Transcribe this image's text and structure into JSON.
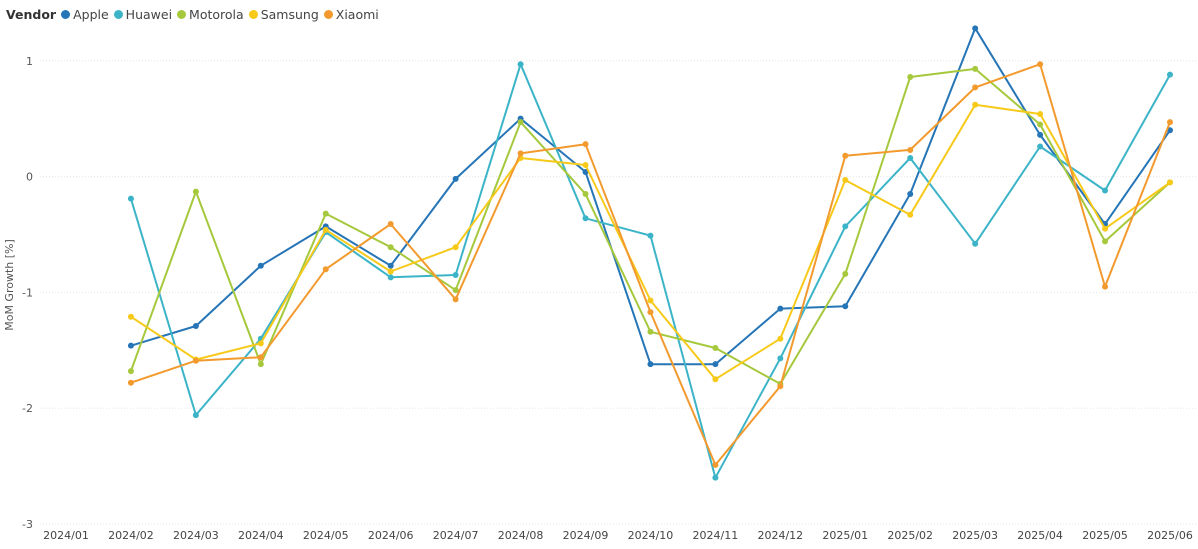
{
  "chart_data": {
    "type": "line",
    "title": "",
    "xlabel": "",
    "ylabel": "MoM Growth [%]",
    "legend_title": "Vendor",
    "legend_position": "top-left",
    "grid": true,
    "ylim": [
      -3,
      1.3
    ],
    "yticks": [
      -3,
      -2,
      -1,
      0,
      1
    ],
    "x": [
      "2024/01",
      "2024/02",
      "2024/03",
      "2024/04",
      "2024/05",
      "2024/06",
      "2024/07",
      "2024/08",
      "2024/09",
      "2024/10",
      "2024/11",
      "2024/12",
      "2025/01",
      "2025/02",
      "2025/03",
      "2025/04",
      "2025/05",
      "2025/06"
    ],
    "series": [
      {
        "name": "Apple",
        "color": "#2575b7",
        "values": [
          null,
          -1.46,
          -1.29,
          -0.77,
          -0.43,
          -0.77,
          -0.02,
          0.5,
          0.04,
          -1.62,
          -1.62,
          -1.14,
          -1.12,
          -0.15,
          1.28,
          0.36,
          -0.41,
          0.4
        ]
      },
      {
        "name": "Huawei",
        "color": "#3cb4c8",
        "values": [
          null,
          -0.19,
          -2.06,
          -1.4,
          -0.48,
          -0.87,
          -0.85,
          0.97,
          -0.36,
          -0.51,
          -2.6,
          -1.57,
          -0.43,
          0.16,
          -0.58,
          0.26,
          -0.12,
          0.88
        ]
      },
      {
        "name": "Motorola",
        "color": "#a6c83c",
        "values": [
          null,
          -1.68,
          -0.13,
          -1.62,
          -0.32,
          -0.61,
          -0.98,
          0.47,
          -0.15,
          -1.34,
          -1.48,
          -1.79,
          -0.84,
          0.86,
          0.93,
          0.45,
          -0.56,
          -0.05
        ]
      },
      {
        "name": "Samsung",
        "color": "#f7c919",
        "values": [
          null,
          -1.21,
          -1.58,
          -1.44,
          -0.46,
          -0.82,
          -0.61,
          0.16,
          0.1,
          -1.07,
          -1.75,
          -1.4,
          -0.03,
          -0.33,
          0.62,
          0.54,
          -0.45,
          -0.05
        ]
      },
      {
        "name": "Xiaomi",
        "color": "#f39a2e",
        "values": [
          null,
          -1.78,
          -1.59,
          -1.56,
          -0.8,
          -0.41,
          -1.06,
          0.2,
          0.28,
          -1.17,
          -2.49,
          -1.81,
          0.18,
          0.23,
          0.77,
          0.97,
          -0.95,
          0.47
        ]
      }
    ]
  }
}
